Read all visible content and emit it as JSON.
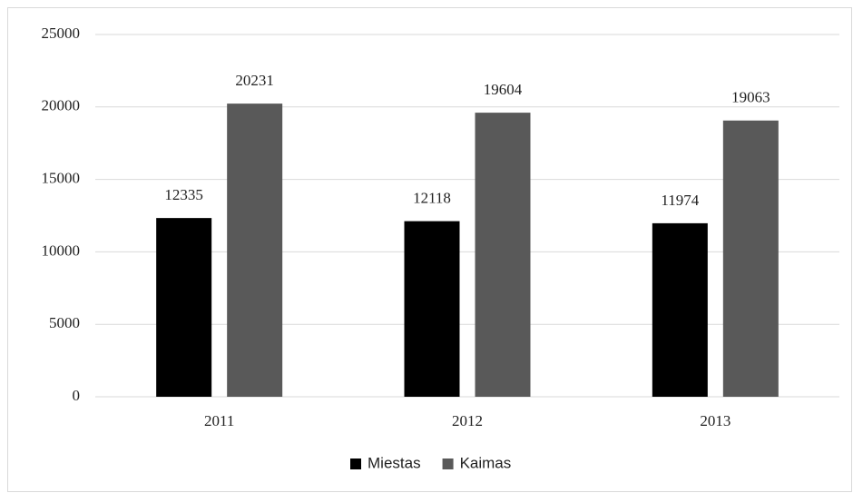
{
  "chart_data": {
    "type": "bar",
    "categories": [
      "2011",
      "2012",
      "2013"
    ],
    "series": [
      {
        "name": "Miestas",
        "color": "#000000",
        "values": [
          12335,
          12118,
          11974
        ]
      },
      {
        "name": "Kaimas",
        "color": "#595959",
        "values": [
          20231,
          19604,
          19063
        ]
      }
    ],
    "ylim": [
      0,
      25000
    ],
    "yticks": [
      0,
      5000,
      10000,
      15000,
      20000,
      25000
    ],
    "grid": true,
    "legend": "bottom"
  }
}
